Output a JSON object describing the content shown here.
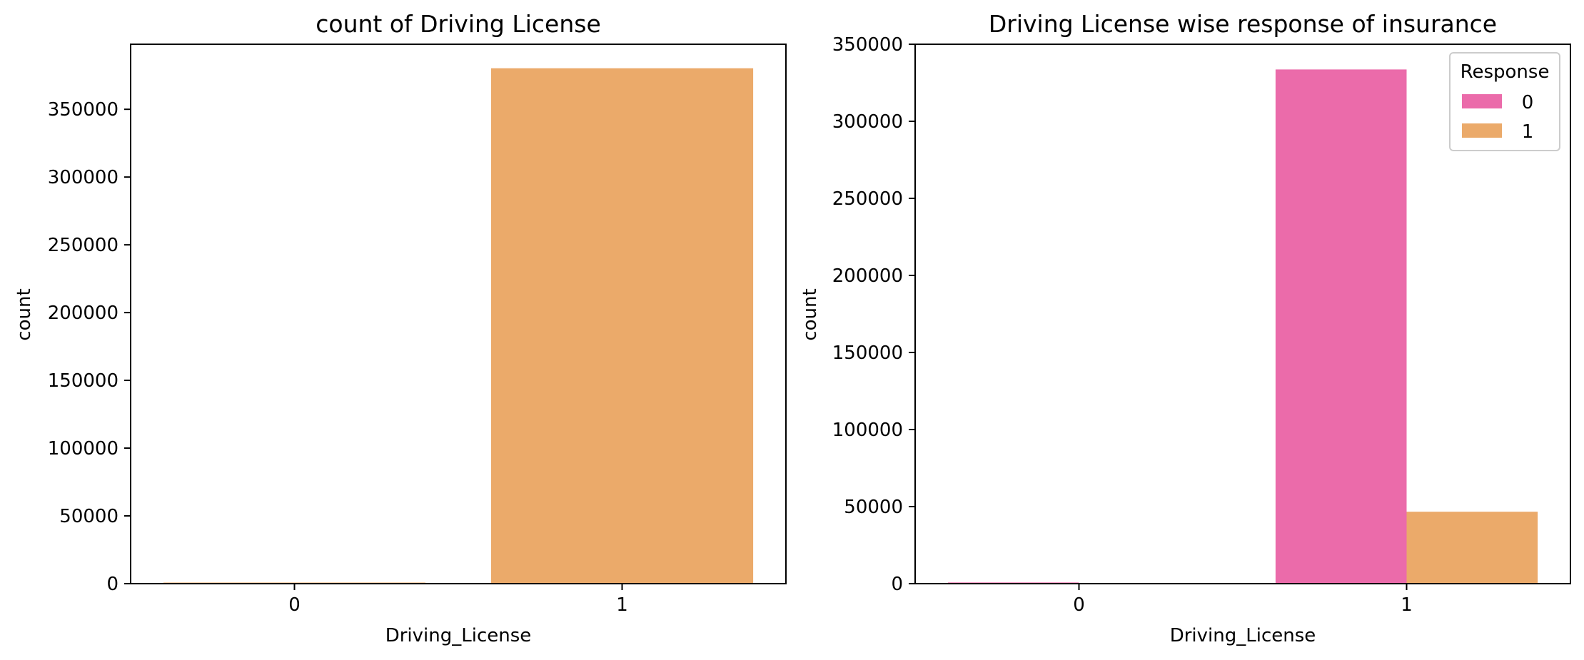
{
  "chart_data": [
    {
      "type": "bar",
      "title": "count of Driving License",
      "xlabel": "Driving_License",
      "ylabel": "count",
      "categories": [
        "0",
        "1"
      ],
      "values": [
        812,
        380297
      ],
      "ylim": [
        0,
        398000
      ],
      "yticks": [
        0,
        50000,
        100000,
        150000,
        200000,
        250000,
        300000,
        350000
      ],
      "bar_color": "#EBAA6A",
      "grid": false
    },
    {
      "type": "bar",
      "title": "Driving License wise response of insurance",
      "xlabel": "Driving_License",
      "ylabel": "count",
      "categories": [
        "0",
        "1"
      ],
      "series": [
        {
          "name": "0",
          "values": [
            771,
            333628
          ],
          "color": "#EB6BAA"
        },
        {
          "name": "1",
          "values": [
            41,
            46669
          ],
          "color": "#EBAA6A"
        }
      ],
      "ylim": [
        0,
        350000
      ],
      "yticks": [
        0,
        50000,
        100000,
        150000,
        200000,
        250000,
        300000,
        350000
      ],
      "legend": {
        "title": "Response",
        "placement": "top-right"
      },
      "grid": false
    }
  ]
}
